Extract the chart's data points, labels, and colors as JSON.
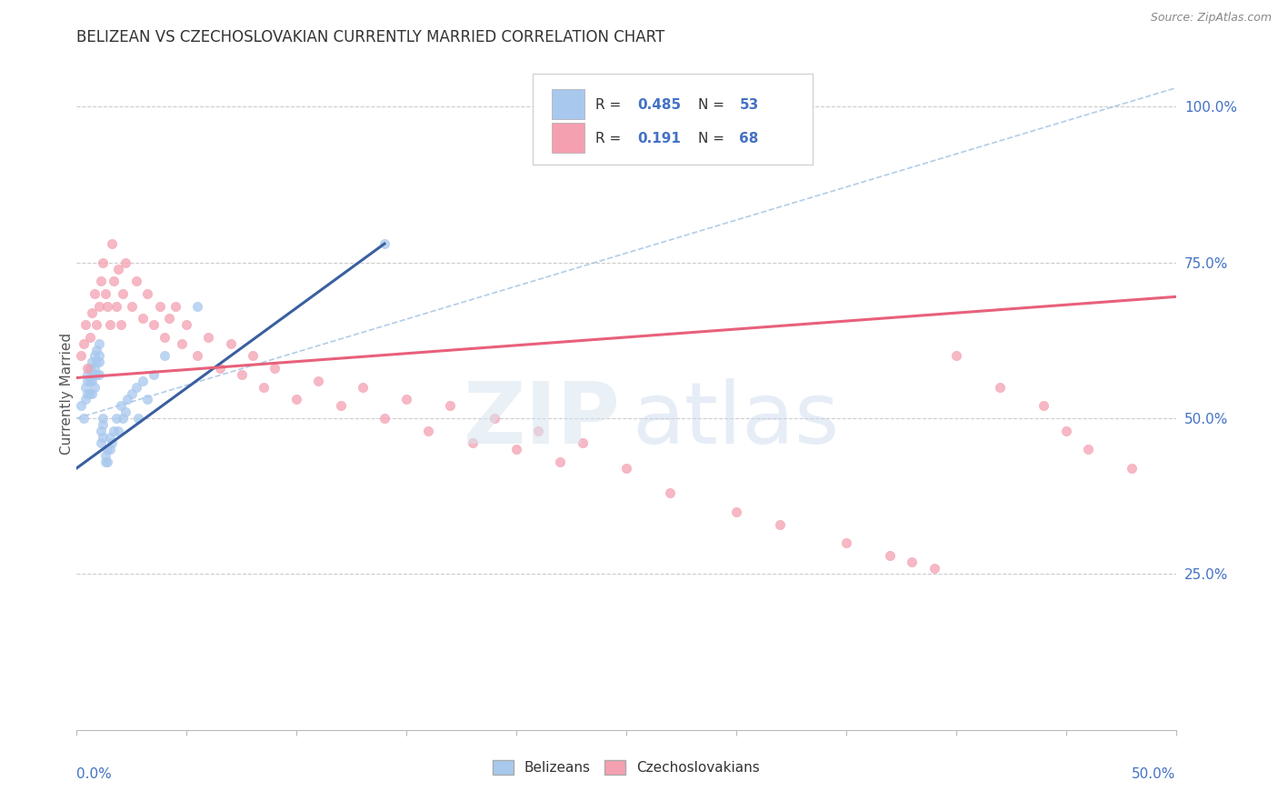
{
  "title": "BELIZEAN VS CZECHOSLOVAKIAN CURRENTLY MARRIED CORRELATION CHART",
  "source": "Source: ZipAtlas.com",
  "legend_blue_label": "Belizeans",
  "legend_pink_label": "Czechoslovakians",
  "xmin": 0.0,
  "xmax": 0.5,
  "ymin": 0.0,
  "ymax": 1.08,
  "yticks": [
    0.25,
    0.5,
    0.75,
    1.0
  ],
  "ytick_labels": [
    "25.0%",
    "50.0%",
    "75.0%",
    "100.0%"
  ],
  "xticks": [
    0.0,
    0.05,
    0.1,
    0.15,
    0.2,
    0.25,
    0.3,
    0.35,
    0.4,
    0.45,
    0.5
  ],
  "blue_fill": "#A8C8EE",
  "pink_fill": "#F4A0B0",
  "blue_line_color": "#3A5FA0",
  "pink_line_color": "#E8607A",
  "blue_dash_color": "#90B8E0",
  "ylabel": "Currently Married",
  "watermark_zip": "ZIP",
  "watermark_atlas": "atlas",
  "blue_r": "0.485",
  "blue_n": "53",
  "pink_r": "0.191",
  "pink_n": "68",
  "blue_scatter_x": [
    0.002,
    0.003,
    0.004,
    0.004,
    0.005,
    0.005,
    0.005,
    0.006,
    0.006,
    0.006,
    0.007,
    0.007,
    0.007,
    0.007,
    0.008,
    0.008,
    0.008,
    0.008,
    0.009,
    0.009,
    0.009,
    0.01,
    0.01,
    0.01,
    0.01,
    0.011,
    0.011,
    0.012,
    0.012,
    0.012,
    0.013,
    0.013,
    0.014,
    0.014,
    0.015,
    0.015,
    0.016,
    0.017,
    0.018,
    0.019,
    0.02,
    0.021,
    0.022,
    0.023,
    0.025,
    0.027,
    0.028,
    0.03,
    0.032,
    0.035,
    0.04,
    0.055,
    0.14
  ],
  "blue_scatter_y": [
    0.52,
    0.5,
    0.55,
    0.53,
    0.57,
    0.56,
    0.54,
    0.58,
    0.56,
    0.54,
    0.59,
    0.57,
    0.56,
    0.54,
    0.6,
    0.58,
    0.57,
    0.55,
    0.61,
    0.59,
    0.57,
    0.62,
    0.6,
    0.59,
    0.57,
    0.48,
    0.46,
    0.5,
    0.49,
    0.47,
    0.44,
    0.43,
    0.45,
    0.43,
    0.47,
    0.45,
    0.46,
    0.48,
    0.5,
    0.48,
    0.52,
    0.5,
    0.51,
    0.53,
    0.54,
    0.55,
    0.5,
    0.56,
    0.53,
    0.57,
    0.6,
    0.68,
    0.78
  ],
  "pink_scatter_x": [
    0.002,
    0.003,
    0.004,
    0.005,
    0.006,
    0.007,
    0.008,
    0.009,
    0.01,
    0.011,
    0.012,
    0.013,
    0.014,
    0.015,
    0.016,
    0.017,
    0.018,
    0.019,
    0.02,
    0.021,
    0.022,
    0.025,
    0.027,
    0.03,
    0.032,
    0.035,
    0.038,
    0.04,
    0.042,
    0.045,
    0.048,
    0.05,
    0.055,
    0.06,
    0.065,
    0.07,
    0.075,
    0.08,
    0.085,
    0.09,
    0.1,
    0.11,
    0.12,
    0.13,
    0.14,
    0.15,
    0.16,
    0.17,
    0.18,
    0.19,
    0.2,
    0.21,
    0.22,
    0.23,
    0.25,
    0.27,
    0.3,
    0.32,
    0.35,
    0.37,
    0.38,
    0.39,
    0.4,
    0.42,
    0.44,
    0.45,
    0.46,
    0.48
  ],
  "pink_scatter_y": [
    0.6,
    0.62,
    0.65,
    0.58,
    0.63,
    0.67,
    0.7,
    0.65,
    0.68,
    0.72,
    0.75,
    0.7,
    0.68,
    0.65,
    0.78,
    0.72,
    0.68,
    0.74,
    0.65,
    0.7,
    0.75,
    0.68,
    0.72,
    0.66,
    0.7,
    0.65,
    0.68,
    0.63,
    0.66,
    0.68,
    0.62,
    0.65,
    0.6,
    0.63,
    0.58,
    0.62,
    0.57,
    0.6,
    0.55,
    0.58,
    0.53,
    0.56,
    0.52,
    0.55,
    0.5,
    0.53,
    0.48,
    0.52,
    0.46,
    0.5,
    0.45,
    0.48,
    0.43,
    0.46,
    0.42,
    0.38,
    0.35,
    0.33,
    0.3,
    0.28,
    0.27,
    0.26,
    0.6,
    0.55,
    0.52,
    0.48,
    0.45,
    0.42
  ]
}
